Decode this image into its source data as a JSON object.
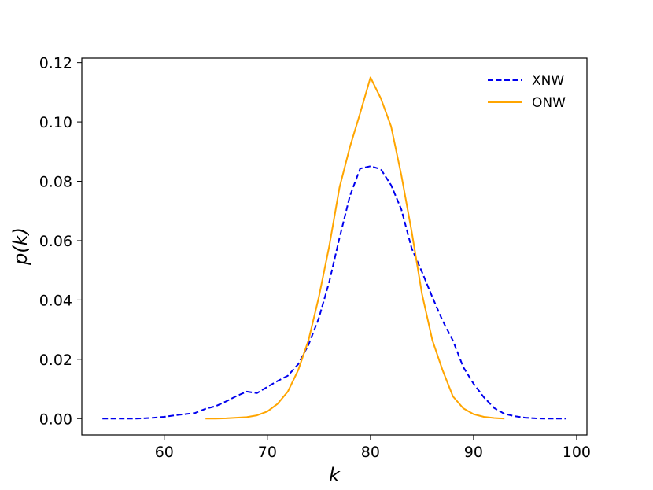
{
  "chart_data": {
    "type": "line",
    "xlabel": "k",
    "ylabel": "p(k)",
    "xlim": [
      52,
      101
    ],
    "ylim": [
      -0.0055,
      0.1215
    ],
    "xticks": [
      60,
      70,
      80,
      90,
      100
    ],
    "yticks": [
      0.0,
      0.02,
      0.04,
      0.06,
      0.08,
      0.1,
      0.12
    ],
    "xtick_labels": [
      "60",
      "70",
      "80",
      "90",
      "100"
    ],
    "ytick_labels": [
      "0.00",
      "0.02",
      "0.04",
      "0.06",
      "0.08",
      "0.10",
      "0.12"
    ],
    "grid": false,
    "legend_position": "top-right",
    "series": [
      {
        "name": "XNW",
        "color": "#0000ee",
        "style": "dashed",
        "x": [
          54,
          55,
          56,
          57,
          58,
          59,
          60,
          61,
          62,
          63,
          64,
          65,
          66,
          67,
          68,
          69,
          70,
          71,
          72,
          73,
          74,
          75,
          76,
          77,
          78,
          79,
          80,
          81,
          82,
          83,
          84,
          85,
          86,
          87,
          88,
          89,
          90,
          91,
          92,
          93,
          94,
          95,
          96,
          97,
          98,
          99
        ],
        "y": [
          0.0,
          0.0,
          0.0,
          0.0,
          0.0001,
          0.0003,
          0.0006,
          0.0011,
          0.0015,
          0.0019,
          0.0033,
          0.0042,
          0.0058,
          0.0076,
          0.0091,
          0.0086,
          0.0107,
          0.0127,
          0.0145,
          0.0184,
          0.0249,
          0.0339,
          0.046,
          0.061,
          0.075,
          0.0843,
          0.0851,
          0.0841,
          0.0787,
          0.0705,
          0.0574,
          0.0494,
          0.041,
          0.033,
          0.0263,
          0.0174,
          0.0118,
          0.0072,
          0.0036,
          0.0016,
          0.0008,
          0.0003,
          0.0001,
          0.0,
          0.0,
          0.0
        ]
      },
      {
        "name": "ONW",
        "color": "#ffa500",
        "style": "solid",
        "x": [
          64,
          65,
          66,
          67,
          68,
          69,
          70,
          71,
          72,
          73,
          74,
          75,
          76,
          77,
          78,
          79,
          80,
          81,
          82,
          83,
          84,
          85,
          86,
          87,
          88,
          89,
          90,
          91,
          92,
          93
        ],
        "y": [
          0.0,
          0.0,
          0.0001,
          0.0003,
          0.0005,
          0.0011,
          0.0024,
          0.005,
          0.0092,
          0.0164,
          0.0265,
          0.041,
          0.058,
          0.078,
          0.0915,
          0.103,
          0.115,
          0.108,
          0.0985,
          0.082,
          0.063,
          0.042,
          0.0265,
          0.0163,
          0.0075,
          0.0035,
          0.0015,
          0.0006,
          0.0002,
          0.0
        ]
      }
    ]
  }
}
